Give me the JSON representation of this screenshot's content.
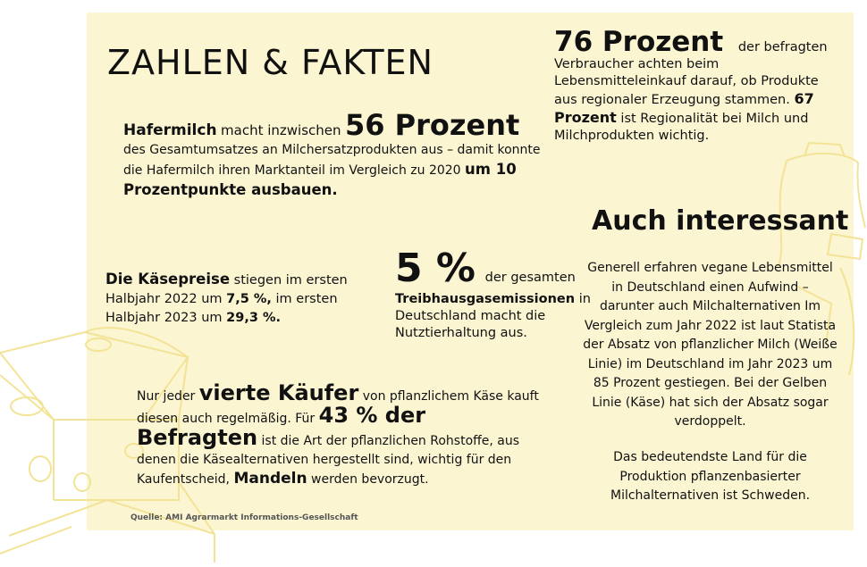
{
  "colors": {
    "panel": "#fbf5d2",
    "illustration": "#f3e396",
    "text": "#111111"
  },
  "decor": {
    "cheese_illustration": "cheese-illustration",
    "milk_jug_illustration": "milk-jug-illustration"
  },
  "title": "ZAHLEN & FAKTEN",
  "fact_regional": {
    "highlight": "76 Prozent",
    "text1": "der befragten Verbraucher achten beim Lebensmitteleinkauf darauf, ob Produkte aus regionaler Erzeugung stammen.",
    "highlight2": "67 Prozent",
    "text2": "ist Regionalität bei Milch und Milchprodukten wichtig."
  },
  "fact_oatmilk": {
    "lead": "Hafermilch",
    "text1": "macht inzwischen",
    "highlight": "56 Prozent",
    "text2": "des Gesamtumsatzes an Milchersatzprodukten aus – damit konnte die Hafermilch ihren Marktanteil im Vergleich zu 2020",
    "text3": "um 10 Prozentpunkte ausbauen."
  },
  "fact_cheese_prices": {
    "lead": "Die Käsepreise",
    "text1": "stiegen im ersten Halbjahr 2022 um",
    "value1": "7,5 %,",
    "text2": "im ersten Halbjahr 2023 um",
    "value2": "29,3 %."
  },
  "fact_emissions": {
    "highlight": "5 %",
    "text1": "der gesamten",
    "bold": "Treibhausgasemissionen",
    "text2": "in Deutschland macht die Nutztierhaltung aus."
  },
  "fact_buyers": {
    "text1": "Nur jeder",
    "highlight": "vierte Käufer",
    "text2": "von pflanzlichem Käse kauft diesen auch regelmäßig. Für",
    "highlight2": "43 % der Befragten",
    "text3": "ist die Art der pflanzlichen Rohstoffe, aus denen die Käsealternativen hergestellt sind, wichtig für den Kaufentscheid,",
    "bold": "Mandeln",
    "text4": "werden bevorzugt."
  },
  "also_interesting": {
    "heading": "Auch interessant",
    "paragraph1": "Generell erfahren vegane Lebensmittel in Deutschland einen Aufwind – darunter auch Milchalternativen Im Vergleich zum Jahr 2022 ist laut Statista der Absatz von pflanzlicher Milch (Weiße Linie) im Deutschland im Jahr 2023 um 85 Prozent gestiegen. Bei der Gelben Linie (Käse) hat sich der Absatz sogar verdoppelt.",
    "paragraph2": "Das bedeutendste Land für die Produktion pflanzenbasierter Milchalternativen ist Schweden."
  },
  "source": "Quelle: AMI Agrarmarkt Informations-Gesellschaft"
}
